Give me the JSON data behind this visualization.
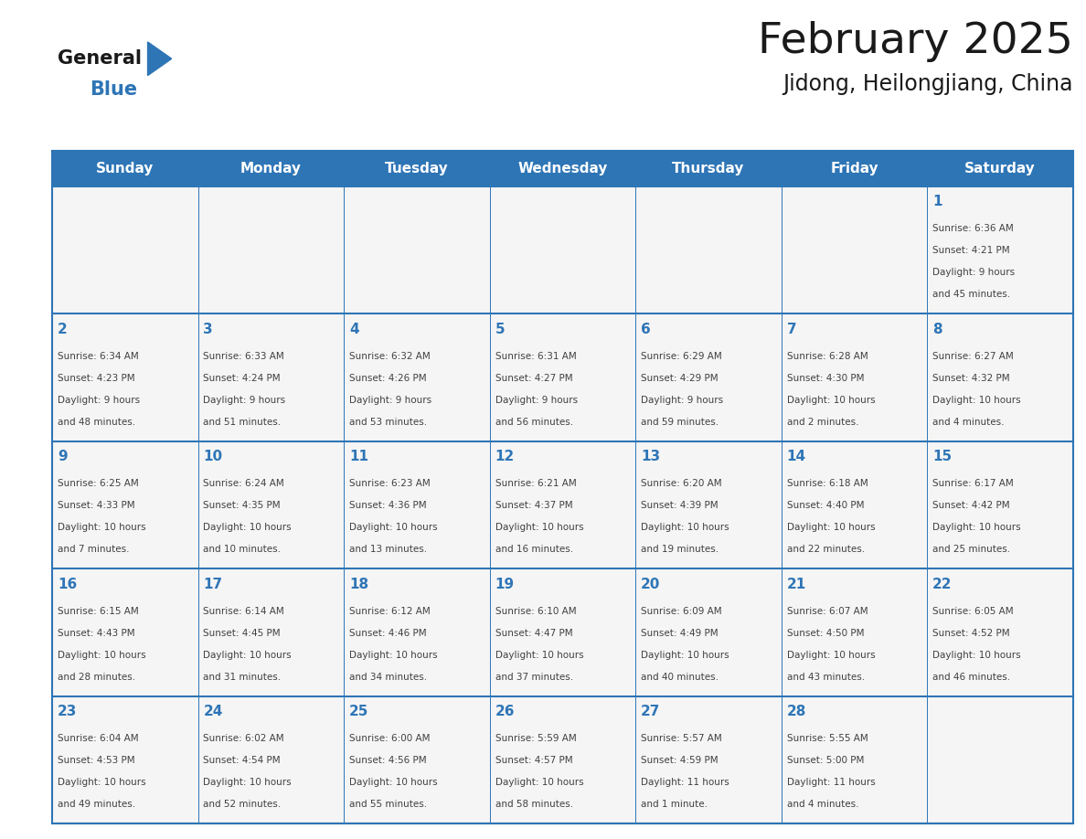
{
  "title": "February 2025",
  "subtitle": "Jidong, Heilongjiang, China",
  "days_of_week": [
    "Sunday",
    "Monday",
    "Tuesday",
    "Wednesday",
    "Thursday",
    "Friday",
    "Saturday"
  ],
  "header_bg": "#2E75B6",
  "header_text": "#FFFFFF",
  "cell_bg": "#F5F5F5",
  "day_number_color": "#2E75B6",
  "text_color": "#404040",
  "line_color": "#2E75B6",
  "calendar_data": [
    [
      null,
      null,
      null,
      null,
      null,
      null,
      {
        "day": 1,
        "sunrise": "6:36 AM",
        "sunset": "4:21 PM",
        "daylight_line1": "Daylight: 9 hours",
        "daylight_line2": "and 45 minutes."
      }
    ],
    [
      {
        "day": 2,
        "sunrise": "6:34 AM",
        "sunset": "4:23 PM",
        "daylight_line1": "Daylight: 9 hours",
        "daylight_line2": "and 48 minutes."
      },
      {
        "day": 3,
        "sunrise": "6:33 AM",
        "sunset": "4:24 PM",
        "daylight_line1": "Daylight: 9 hours",
        "daylight_line2": "and 51 minutes."
      },
      {
        "day": 4,
        "sunrise": "6:32 AM",
        "sunset": "4:26 PM",
        "daylight_line1": "Daylight: 9 hours",
        "daylight_line2": "and 53 minutes."
      },
      {
        "day": 5,
        "sunrise": "6:31 AM",
        "sunset": "4:27 PM",
        "daylight_line1": "Daylight: 9 hours",
        "daylight_line2": "and 56 minutes."
      },
      {
        "day": 6,
        "sunrise": "6:29 AM",
        "sunset": "4:29 PM",
        "daylight_line1": "Daylight: 9 hours",
        "daylight_line2": "and 59 minutes."
      },
      {
        "day": 7,
        "sunrise": "6:28 AM",
        "sunset": "4:30 PM",
        "daylight_line1": "Daylight: 10 hours",
        "daylight_line2": "and 2 minutes."
      },
      {
        "day": 8,
        "sunrise": "6:27 AM",
        "sunset": "4:32 PM",
        "daylight_line1": "Daylight: 10 hours",
        "daylight_line2": "and 4 minutes."
      }
    ],
    [
      {
        "day": 9,
        "sunrise": "6:25 AM",
        "sunset": "4:33 PM",
        "daylight_line1": "Daylight: 10 hours",
        "daylight_line2": "and 7 minutes."
      },
      {
        "day": 10,
        "sunrise": "6:24 AM",
        "sunset": "4:35 PM",
        "daylight_line1": "Daylight: 10 hours",
        "daylight_line2": "and 10 minutes."
      },
      {
        "day": 11,
        "sunrise": "6:23 AM",
        "sunset": "4:36 PM",
        "daylight_line1": "Daylight: 10 hours",
        "daylight_line2": "and 13 minutes."
      },
      {
        "day": 12,
        "sunrise": "6:21 AM",
        "sunset": "4:37 PM",
        "daylight_line1": "Daylight: 10 hours",
        "daylight_line2": "and 16 minutes."
      },
      {
        "day": 13,
        "sunrise": "6:20 AM",
        "sunset": "4:39 PM",
        "daylight_line1": "Daylight: 10 hours",
        "daylight_line2": "and 19 minutes."
      },
      {
        "day": 14,
        "sunrise": "6:18 AM",
        "sunset": "4:40 PM",
        "daylight_line1": "Daylight: 10 hours",
        "daylight_line2": "and 22 minutes."
      },
      {
        "day": 15,
        "sunrise": "6:17 AM",
        "sunset": "4:42 PM",
        "daylight_line1": "Daylight: 10 hours",
        "daylight_line2": "and 25 minutes."
      }
    ],
    [
      {
        "day": 16,
        "sunrise": "6:15 AM",
        "sunset": "4:43 PM",
        "daylight_line1": "Daylight: 10 hours",
        "daylight_line2": "and 28 minutes."
      },
      {
        "day": 17,
        "sunrise": "6:14 AM",
        "sunset": "4:45 PM",
        "daylight_line1": "Daylight: 10 hours",
        "daylight_line2": "and 31 minutes."
      },
      {
        "day": 18,
        "sunrise": "6:12 AM",
        "sunset": "4:46 PM",
        "daylight_line1": "Daylight: 10 hours",
        "daylight_line2": "and 34 minutes."
      },
      {
        "day": 19,
        "sunrise": "6:10 AM",
        "sunset": "4:47 PM",
        "daylight_line1": "Daylight: 10 hours",
        "daylight_line2": "and 37 minutes."
      },
      {
        "day": 20,
        "sunrise": "6:09 AM",
        "sunset": "4:49 PM",
        "daylight_line1": "Daylight: 10 hours",
        "daylight_line2": "and 40 minutes."
      },
      {
        "day": 21,
        "sunrise": "6:07 AM",
        "sunset": "4:50 PM",
        "daylight_line1": "Daylight: 10 hours",
        "daylight_line2": "and 43 minutes."
      },
      {
        "day": 22,
        "sunrise": "6:05 AM",
        "sunset": "4:52 PM",
        "daylight_line1": "Daylight: 10 hours",
        "daylight_line2": "and 46 minutes."
      }
    ],
    [
      {
        "day": 23,
        "sunrise": "6:04 AM",
        "sunset": "4:53 PM",
        "daylight_line1": "Daylight: 10 hours",
        "daylight_line2": "and 49 minutes."
      },
      {
        "day": 24,
        "sunrise": "6:02 AM",
        "sunset": "4:54 PM",
        "daylight_line1": "Daylight: 10 hours",
        "daylight_line2": "and 52 minutes."
      },
      {
        "day": 25,
        "sunrise": "6:00 AM",
        "sunset": "4:56 PM",
        "daylight_line1": "Daylight: 10 hours",
        "daylight_line2": "and 55 minutes."
      },
      {
        "day": 26,
        "sunrise": "5:59 AM",
        "sunset": "4:57 PM",
        "daylight_line1": "Daylight: 10 hours",
        "daylight_line2": "and 58 minutes."
      },
      {
        "day": 27,
        "sunrise": "5:57 AM",
        "sunset": "4:59 PM",
        "daylight_line1": "Daylight: 11 hours",
        "daylight_line2": "and 1 minute."
      },
      {
        "day": 28,
        "sunrise": "5:55 AM",
        "sunset": "5:00 PM",
        "daylight_line1": "Daylight: 11 hours",
        "daylight_line2": "and 4 minutes."
      },
      null
    ]
  ]
}
